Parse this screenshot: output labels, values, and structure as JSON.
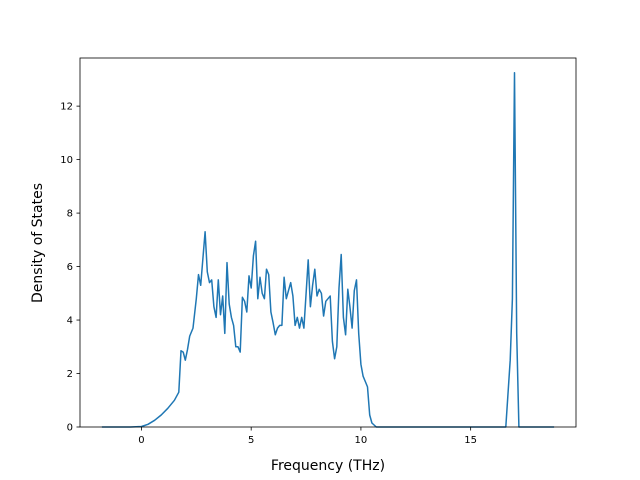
{
  "chart_data": {
    "type": "line",
    "title": "",
    "xlabel": "Frequency (THz)",
    "ylabel": "Density of States",
    "xlim": [
      -2.8,
      19.8
    ],
    "ylim": [
      0,
      13.8
    ],
    "x_ticks": [
      0,
      5,
      10,
      15
    ],
    "x_tick_labels": [
      "0",
      "5",
      "10",
      "15"
    ],
    "y_ticks": [
      0,
      2,
      4,
      6,
      8,
      10,
      12
    ],
    "y_tick_labels": [
      "0",
      "2",
      "4",
      "6",
      "8",
      "10",
      "12"
    ],
    "grid": false,
    "legend": "none",
    "line_color": "#1f77b4",
    "series": [
      {
        "x": [
          -1.8,
          -1.0,
          -0.5,
          0.0,
          0.3,
          0.6,
          0.9,
          1.2,
          1.5,
          1.7,
          1.8,
          1.9,
          2.0,
          2.1,
          2.2,
          2.35,
          2.5,
          2.6,
          2.7,
          2.8,
          2.9,
          3.0,
          3.1,
          3.2,
          3.3,
          3.4,
          3.5,
          3.6,
          3.7,
          3.8,
          3.9,
          4.0,
          4.1,
          4.2,
          4.3,
          4.4,
          4.5,
          4.6,
          4.7,
          4.8,
          4.9,
          5.0,
          5.1,
          5.2,
          5.3,
          5.4,
          5.5,
          5.6,
          5.7,
          5.8,
          5.9,
          6.0,
          6.1,
          6.2,
          6.3,
          6.4,
          6.5,
          6.6,
          6.7,
          6.8,
          6.9,
          7.0,
          7.1,
          7.2,
          7.3,
          7.4,
          7.5,
          7.6,
          7.7,
          7.8,
          7.9,
          8.0,
          8.1,
          8.2,
          8.3,
          8.4,
          8.5,
          8.6,
          8.7,
          8.8,
          8.9,
          9.0,
          9.1,
          9.2,
          9.3,
          9.4,
          9.5,
          9.6,
          9.7,
          9.8,
          9.9,
          10.0,
          10.1,
          10.2,
          10.3,
          10.4,
          10.5,
          10.7,
          11.0,
          12.0,
          13.0,
          14.0,
          15.0,
          16.0,
          16.6,
          16.8,
          16.9,
          17.0,
          17.1,
          17.2,
          17.3,
          17.5,
          18.0,
          18.8
        ],
        "y": [
          0.0,
          0.0,
          0.0,
          0.02,
          0.1,
          0.25,
          0.45,
          0.7,
          1.0,
          1.3,
          2.85,
          2.8,
          2.5,
          2.9,
          3.4,
          3.7,
          4.8,
          5.7,
          5.3,
          6.3,
          7.3,
          5.8,
          5.4,
          5.5,
          4.5,
          4.1,
          5.5,
          4.2,
          4.9,
          3.5,
          6.15,
          4.6,
          4.1,
          3.8,
          3.0,
          3.0,
          2.8,
          4.85,
          4.7,
          4.3,
          5.65,
          5.2,
          6.4,
          6.95,
          4.8,
          5.6,
          5.0,
          4.8,
          5.9,
          5.7,
          4.3,
          3.9,
          3.45,
          3.7,
          3.8,
          3.8,
          5.6,
          4.8,
          5.1,
          5.4,
          4.9,
          3.8,
          4.1,
          3.7,
          4.1,
          3.7,
          5.0,
          6.25,
          4.5,
          5.3,
          5.9,
          4.9,
          5.15,
          5.0,
          4.15,
          4.7,
          4.8,
          4.9,
          3.2,
          2.55,
          3.0,
          5.2,
          6.45,
          4.1,
          3.45,
          5.15,
          4.5,
          3.7,
          5.1,
          5.5,
          3.5,
          2.35,
          1.9,
          1.7,
          1.5,
          0.45,
          0.15,
          0.0,
          0.0,
          0.0,
          0.0,
          0.0,
          0.0,
          0.0,
          0.0,
          2.5,
          4.8,
          13.25,
          3.5,
          0.0,
          0.0,
          0.0,
          0.0,
          0.0
        ]
      }
    ]
  }
}
